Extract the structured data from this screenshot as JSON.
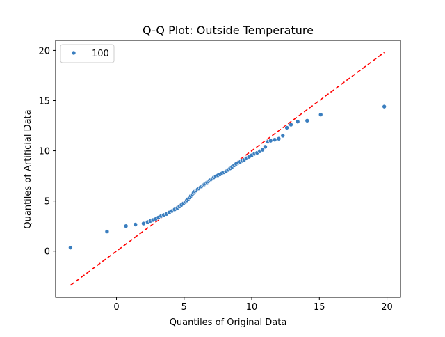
{
  "chart_data": {
    "type": "scatter",
    "title": "Q-Q Plot: Outside Temperature",
    "xlabel": "Quantiles of Original Data",
    "ylabel": "Quantiles of Artificial Data",
    "xlim": [
      -4.5,
      21.0
    ],
    "ylim": [
      -4.6,
      21.0
    ],
    "xticks": [
      0,
      5,
      10,
      15,
      20
    ],
    "yticks": [
      0,
      5,
      10,
      15,
      20
    ],
    "xtick_labels": [
      "0",
      "5",
      "10",
      "15",
      "20"
    ],
    "ytick_labels": [
      "0",
      "5",
      "10",
      "15",
      "20"
    ],
    "grid": false,
    "legend": {
      "placement": "top-left",
      "entries": [
        {
          "label": "100",
          "marker": "point"
        }
      ]
    },
    "series": [
      {
        "name": "100",
        "color": "#3a7ebf",
        "points": [
          [
            -3.4,
            0.35
          ],
          [
            -0.7,
            1.95
          ],
          [
            0.7,
            2.5
          ],
          [
            1.4,
            2.65
          ],
          [
            2.0,
            2.75
          ],
          [
            2.3,
            2.9
          ],
          [
            2.5,
            3.0
          ],
          [
            2.7,
            3.1
          ],
          [
            2.9,
            3.2
          ],
          [
            3.1,
            3.35
          ],
          [
            3.3,
            3.5
          ],
          [
            3.5,
            3.6
          ],
          [
            3.7,
            3.7
          ],
          [
            3.9,
            3.85
          ],
          [
            4.1,
            4.0
          ],
          [
            4.3,
            4.15
          ],
          [
            4.5,
            4.3
          ],
          [
            4.65,
            4.45
          ],
          [
            4.8,
            4.6
          ],
          [
            4.95,
            4.75
          ],
          [
            5.1,
            4.9
          ],
          [
            5.2,
            5.05
          ],
          [
            5.3,
            5.2
          ],
          [
            5.4,
            5.35
          ],
          [
            5.5,
            5.5
          ],
          [
            5.6,
            5.65
          ],
          [
            5.7,
            5.8
          ],
          [
            5.8,
            5.95
          ],
          [
            5.9,
            6.05
          ],
          [
            6.0,
            6.15
          ],
          [
            6.1,
            6.25
          ],
          [
            6.2,
            6.35
          ],
          [
            6.3,
            6.45
          ],
          [
            6.4,
            6.55
          ],
          [
            6.5,
            6.65
          ],
          [
            6.6,
            6.75
          ],
          [
            6.7,
            6.85
          ],
          [
            6.8,
            6.95
          ],
          [
            6.9,
            7.05
          ],
          [
            7.0,
            7.15
          ],
          [
            7.1,
            7.25
          ],
          [
            7.2,
            7.35
          ],
          [
            7.35,
            7.45
          ],
          [
            7.5,
            7.55
          ],
          [
            7.65,
            7.65
          ],
          [
            7.8,
            7.75
          ],
          [
            7.95,
            7.85
          ],
          [
            8.1,
            7.95
          ],
          [
            8.25,
            8.1
          ],
          [
            8.4,
            8.25
          ],
          [
            8.55,
            8.4
          ],
          [
            8.7,
            8.55
          ],
          [
            8.85,
            8.7
          ],
          [
            9.0,
            8.8
          ],
          [
            9.15,
            8.9
          ],
          [
            9.3,
            9.0
          ],
          [
            9.45,
            9.1
          ],
          [
            9.6,
            9.25
          ],
          [
            9.8,
            9.4
          ],
          [
            10.0,
            9.55
          ],
          [
            10.2,
            9.7
          ],
          [
            10.4,
            9.8
          ],
          [
            10.6,
            9.95
          ],
          [
            10.8,
            10.1
          ],
          [
            11.0,
            10.4
          ],
          [
            11.2,
            10.9
          ],
          [
            11.4,
            11.0
          ],
          [
            11.7,
            11.1
          ],
          [
            12.0,
            11.2
          ],
          [
            12.3,
            11.5
          ],
          [
            12.6,
            12.3
          ],
          [
            12.9,
            12.6
          ],
          [
            13.4,
            12.9
          ],
          [
            14.1,
            13.0
          ],
          [
            15.1,
            13.6
          ],
          [
            19.8,
            14.4
          ]
        ]
      }
    ],
    "reference_line": {
      "style": "dashed",
      "color": "#ff0000",
      "from": [
        -3.4,
        -3.4
      ],
      "to": [
        19.8,
        19.8
      ]
    }
  }
}
